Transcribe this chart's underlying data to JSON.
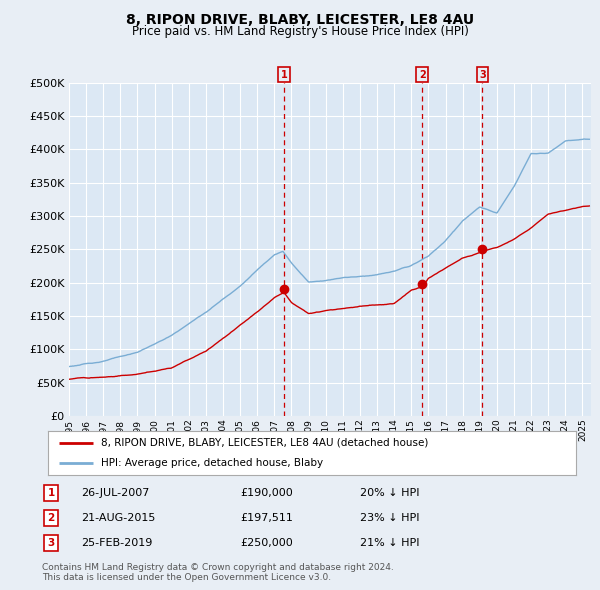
{
  "title": "8, RIPON DRIVE, BLABY, LEICESTER, LE8 4AU",
  "subtitle": "Price paid vs. HM Land Registry's House Price Index (HPI)",
  "background_color": "#e8eef5",
  "plot_bg_color": "#dce8f4",
  "ylim": [
    0,
    500000
  ],
  "yticks": [
    0,
    50000,
    100000,
    150000,
    200000,
    250000,
    300000,
    350000,
    400000,
    450000,
    500000
  ],
  "xmin_year": 1995.0,
  "xmax_year": 2025.5,
  "sale_dates": [
    2007.57,
    2015.64,
    2019.15
  ],
  "sale_prices": [
    190000,
    197511,
    250000
  ],
  "sale_labels": [
    "1",
    "2",
    "3"
  ],
  "sale_date_strs": [
    "26-JUL-2007",
    "21-AUG-2015",
    "25-FEB-2019"
  ],
  "sale_price_strs": [
    "£190,000",
    "£197,511",
    "£250,000"
  ],
  "sale_hpi_strs": [
    "20% ↓ HPI",
    "23% ↓ HPI",
    "21% ↓ HPI"
  ],
  "hpi_line_color": "#7aadd4",
  "price_line_color": "#cc0000",
  "sale_marker_color": "#cc0000",
  "vline_color": "#cc0000",
  "legend_label_red": "8, RIPON DRIVE, BLABY, LEICESTER, LE8 4AU (detached house)",
  "legend_label_blue": "HPI: Average price, detached house, Blaby",
  "footer": "Contains HM Land Registry data © Crown copyright and database right 2024.\nThis data is licensed under the Open Government Licence v3.0.",
  "xtick_years": [
    1995,
    1996,
    1997,
    1998,
    1999,
    2000,
    2001,
    2002,
    2003,
    2004,
    2005,
    2006,
    2007,
    2008,
    2009,
    2010,
    2011,
    2012,
    2013,
    2014,
    2015,
    2016,
    2017,
    2018,
    2019,
    2020,
    2021,
    2022,
    2023,
    2024,
    2025
  ],
  "hpi_keypoints_x": [
    1995,
    1997,
    1999,
    2001,
    2003,
    2005,
    2007,
    2007.5,
    2008,
    2009,
    2010,
    2011,
    2012,
    2013,
    2014,
    2015,
    2016,
    2017,
    2018,
    2019,
    2020,
    2021,
    2022,
    2023,
    2024,
    2025
  ],
  "hpi_keypoints_y": [
    74000,
    82000,
    95000,
    120000,
    155000,
    195000,
    243000,
    248000,
    230000,
    202000,
    205000,
    210000,
    212000,
    215000,
    220000,
    228000,
    242000,
    265000,
    295000,
    315000,
    305000,
    345000,
    395000,
    395000,
    413000,
    415000
  ],
  "price_keypoints_x": [
    1995,
    1997,
    1999,
    2001,
    2003,
    2005,
    2007,
    2007.57,
    2008,
    2009,
    2010,
    2011,
    2012,
    2013,
    2014,
    2015,
    2015.64,
    2016,
    2017,
    2018,
    2019,
    2019.15,
    2020,
    2021,
    2022,
    2023,
    2024,
    2025
  ],
  "price_keypoints_y": [
    55000,
    60000,
    65000,
    75000,
    100000,
    140000,
    182000,
    190000,
    175000,
    158000,
    162000,
    165000,
    168000,
    170000,
    172000,
    192000,
    197511,
    210000,
    225000,
    240000,
    248000,
    250000,
    255000,
    268000,
    285000,
    305000,
    310000,
    315000
  ]
}
